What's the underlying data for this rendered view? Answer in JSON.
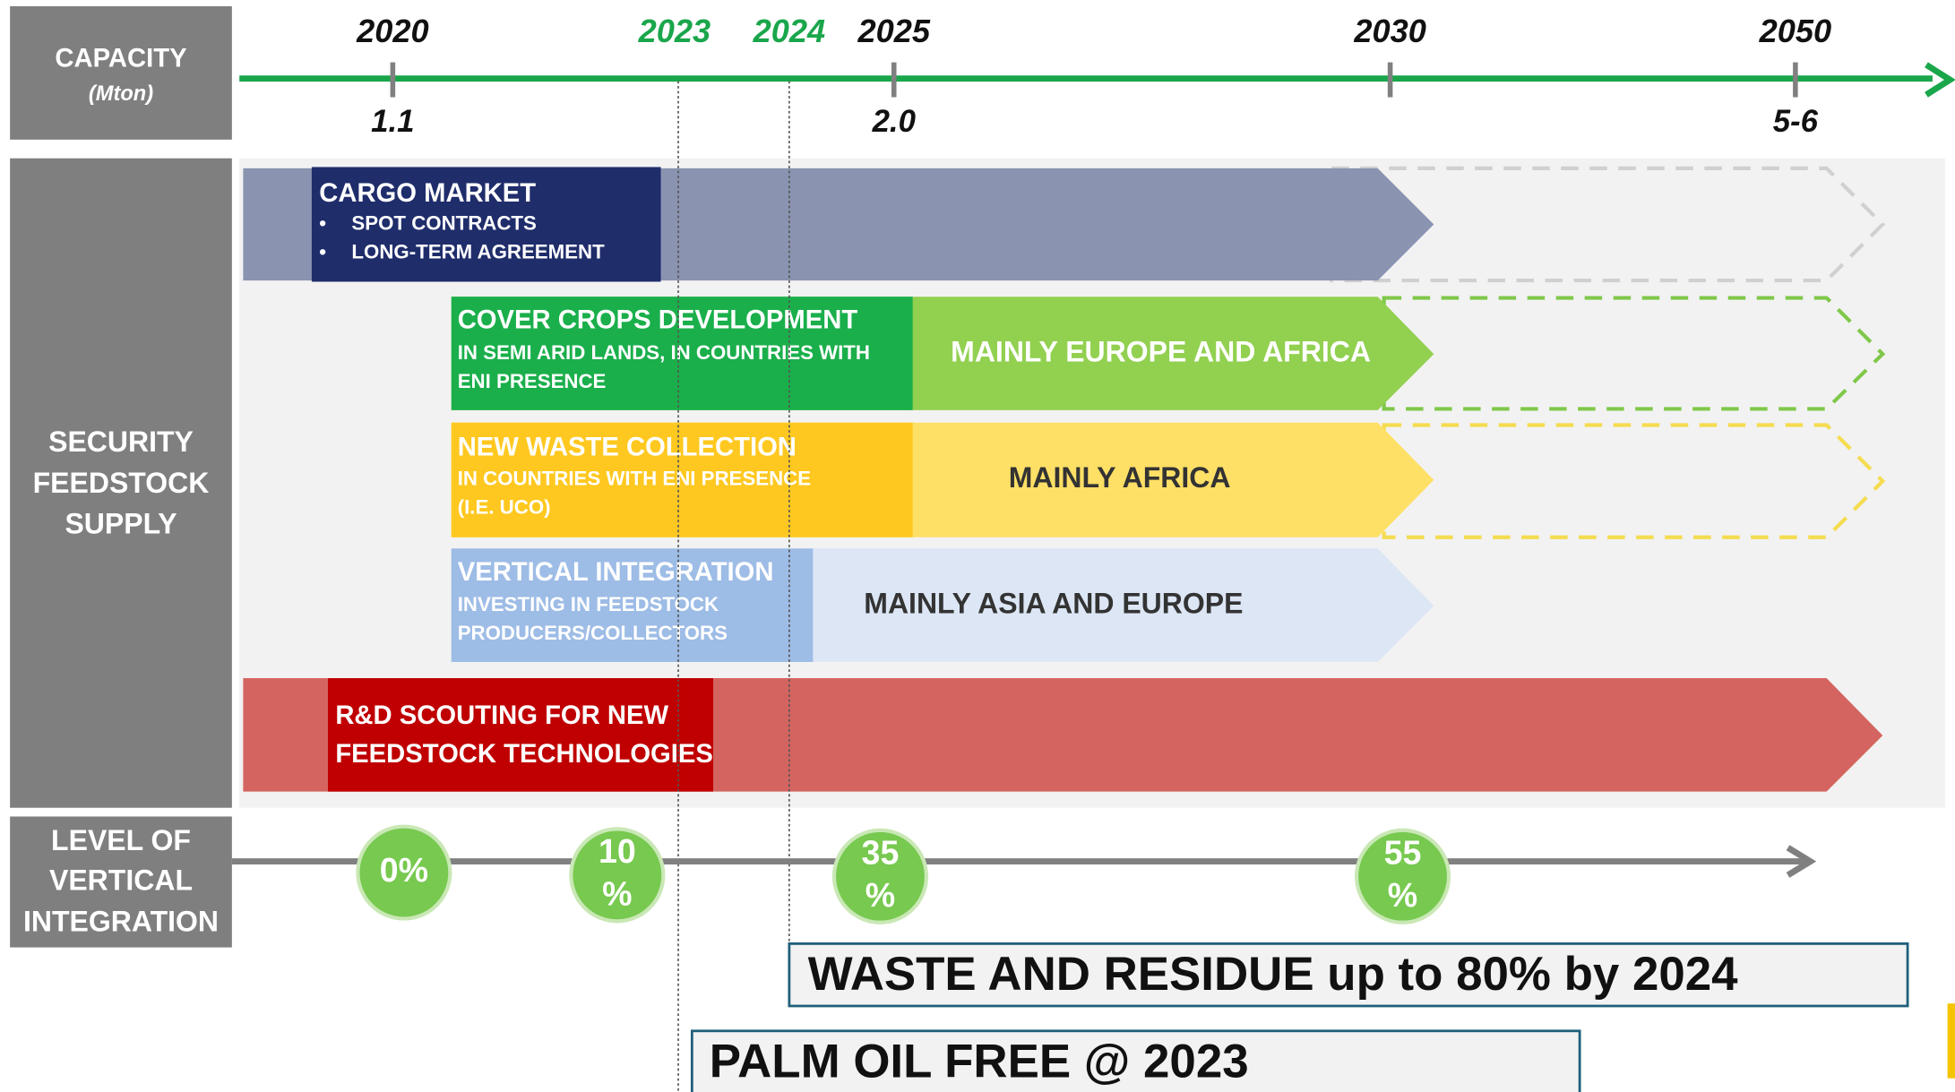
{
  "header": {
    "title": "CAPACITY",
    "unit": "(Mton)"
  },
  "timeline": [
    {
      "year": "2020",
      "capacity": "1.1",
      "color": "#111111"
    },
    {
      "year": "2023",
      "color": "#1aa64b"
    },
    {
      "year": "2024",
      "color": "#1aa64b"
    },
    {
      "year": "2025",
      "capacity": "2.0",
      "color": "#111111"
    },
    {
      "year": "2030",
      "color": "#111111"
    },
    {
      "year": "2050",
      "capacity": "5-6",
      "color": "#111111"
    }
  ],
  "feedstock": {
    "label": [
      "SECURITY",
      "FEEDSTOCK",
      "SUPPLY"
    ],
    "rows": [
      {
        "title": "CARGO MARKET",
        "lines": [
          "SPOT CONTRACTS",
          "LONG-TERM AGREEMENT"
        ]
      },
      {
        "title": "COVER CROPS DEVELOPMENT",
        "lines": [
          "IN SEMI ARID LANDS, IN COUNTRIES WITH",
          "ENI PRESENCE"
        ],
        "region": "MAINLY EUROPE AND AFRICA"
      },
      {
        "title": "NEW WASTE COLLECTION",
        "lines": [
          "IN COUNTRIES WITH ENI PRESENCE",
          "(I.E. UCO)"
        ],
        "region": "MAINLY AFRICA"
      },
      {
        "title": "VERTICAL INTEGRATION",
        "lines": [
          "INVESTING IN FEEDSTOCK",
          "PRODUCERS/COLLECTORS"
        ],
        "region": "MAINLY ASIA AND EUROPE"
      },
      {
        "lines": [
          "R&D SCOUTING FOR NEW",
          "FEEDSTOCK TECHNOLOGIES"
        ]
      }
    ]
  },
  "integration": {
    "label": [
      "LEVEL OF",
      "VERTICAL",
      "INTEGRATION"
    ],
    "levels": [
      [
        "0%"
      ],
      [
        "10",
        "%"
      ],
      [
        "35",
        "%"
      ],
      [
        "55",
        "%"
      ]
    ]
  },
  "targets": [
    "WASTE AND RESIDUE up to 80% by 2024",
    "PALM OIL FREE @ 2023"
  ]
}
